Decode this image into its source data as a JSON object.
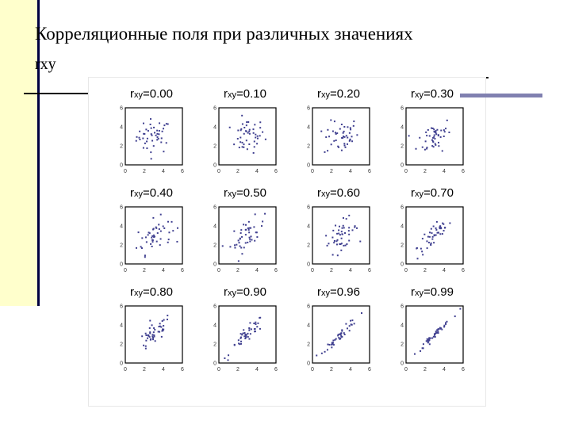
{
  "title": {
    "line1": "Корреляционные поля при различных значениях",
    "line2": "rxy"
  },
  "panels": [
    {
      "r": "r",
      "sub": "xy",
      "eq": "=0.00",
      "value": 0.0
    },
    {
      "r": "r",
      "sub": "xy",
      "eq": "=0.10",
      "value": 0.1
    },
    {
      "r": "r",
      "sub": "xy",
      "eq": "=0.20",
      "value": 0.2
    },
    {
      "r": "r",
      "sub": "xy",
      "eq": "=0.30",
      "value": 0.3
    },
    {
      "r": "r",
      "sub": "xy",
      "eq": "=0.40",
      "value": 0.4
    },
    {
      "r": "r",
      "sub": "xy",
      "eq": "=0.50",
      "value": 0.5
    },
    {
      "r": "r",
      "sub": "xy",
      "eq": "=0.60",
      "value": 0.6
    },
    {
      "r": "r",
      "sub": "xy",
      "eq": "=0.70",
      "value": 0.7
    },
    {
      "r": "r",
      "sub": "xy",
      "eq": "=0.80",
      "value": 0.8
    },
    {
      "r": "r",
      "sub": "xy",
      "eq": "=0.90",
      "value": 0.9
    },
    {
      "r": "r",
      "sub": "xy",
      "eq": "=0.96",
      "value": 0.96
    },
    {
      "r": "r",
      "sub": "xy",
      "eq": "=0.99",
      "value": 0.99
    }
  ],
  "axis": {
    "ticks": [
      "0",
      "2",
      "4",
      "6"
    ],
    "range": [
      0,
      6
    ]
  },
  "colors": {
    "points": "#404090",
    "sidebar": "#ffffcc",
    "accent": "#8080b0"
  }
}
